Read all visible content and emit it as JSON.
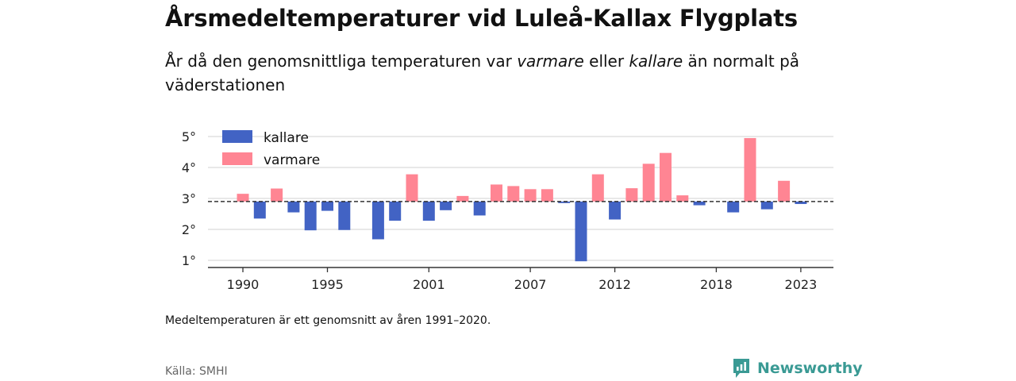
{
  "title": "Årsmedeltemperaturer vid Luleå-Kallax Flygplats",
  "subtitle": {
    "part1": "År då den genomsnittliga temperaturen var ",
    "em1": "varmare",
    "part2": " eller ",
    "em2": "kallare",
    "part3": " än normalt på väderstationen"
  },
  "note": "Medeltemperaturen är ett genomsnitt av åren 1991–2020.",
  "source": "Källa: SMHI",
  "brand": {
    "name": "Newsworthy",
    "icon": "newsworthy-logo-icon",
    "color": "#3a9a94"
  },
  "colors": {
    "colder": "#4263c4",
    "warmer": "#ff8593",
    "grid": "#d9d9d9",
    "axis": "#333333"
  },
  "chart_data": {
    "type": "bar",
    "baseline": 2.9,
    "ylim": [
      0.85,
      5.35
    ],
    "yticks": [
      1,
      2,
      3,
      4,
      5
    ],
    "ytick_labels": [
      "1°",
      "2°",
      "3°",
      "4°",
      "5°"
    ],
    "xticks": [
      1990,
      1995,
      2001,
      2007,
      2012,
      2018,
      2023
    ],
    "xtick_labels": [
      "1990",
      "1995",
      "2001",
      "2007",
      "2012",
      "2018",
      "2023"
    ],
    "grid": true,
    "legend_position": "top-left",
    "legend": [
      {
        "key": "kallare",
        "label": "kallare",
        "color": "#4263c4"
      },
      {
        "key": "varmare",
        "label": "varmare",
        "color": "#ff8593"
      }
    ],
    "x": [
      1990,
      1991,
      1992,
      1993,
      1994,
      1995,
      1996,
      1997,
      1998,
      1999,
      2000,
      2001,
      2002,
      2003,
      2004,
      2005,
      2006,
      2007,
      2008,
      2009,
      2010,
      2011,
      2012,
      2013,
      2014,
      2015,
      2016,
      2017,
      2018,
      2019,
      2020,
      2021,
      2022,
      2023
    ],
    "values": [
      3.15,
      2.35,
      3.32,
      2.55,
      1.97,
      2.6,
      1.98,
      null,
      1.68,
      2.28,
      3.78,
      2.28,
      2.62,
      3.08,
      2.45,
      3.45,
      3.4,
      3.3,
      3.3,
      2.85,
      0.97,
      3.78,
      2.32,
      3.33,
      4.12,
      4.47,
      3.1,
      2.78,
      null,
      2.55,
      4.95,
      2.65,
      3.57,
      2.82
    ]
  }
}
